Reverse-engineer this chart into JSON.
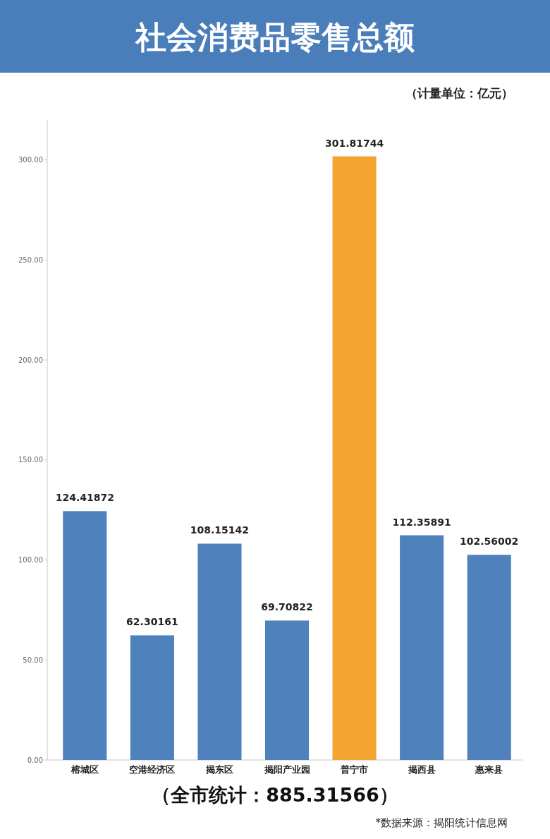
{
  "chart_data": {
    "type": "bar",
    "title": "社会消费品零售总额",
    "subtitle": "（计量单位：亿元）",
    "categories": [
      "榕城区",
      "空港经济区",
      "揭东区",
      "揭阳产业园",
      "普宁市",
      "揭西县",
      "惠来县"
    ],
    "values": [
      124.41872,
      62.30161,
      108.15142,
      69.70822,
      301.81744,
      112.35891,
      102.56002
    ],
    "colors": [
      "#4f81bd",
      "#4f81bd",
      "#4f81bd",
      "#4f81bd",
      "#f4a431",
      "#4f81bd",
      "#4f81bd"
    ],
    "data_labels": true,
    "ylim": [
      0,
      320
    ],
    "yticks": [
      {
        "value": 0,
        "label": "0.00"
      },
      {
        "value": 50,
        "label": "50.00"
      },
      {
        "value": 100,
        "label": "100.00"
      },
      {
        "value": 150,
        "label": "150.00"
      },
      {
        "value": 200,
        "label": "200.00"
      },
      {
        "value": 250,
        "label": "250.00"
      },
      {
        "value": 300,
        "label": "300.00"
      }
    ],
    "grid": false,
    "annotations": [
      "（全市统计：885.31566）",
      "*数据来源：揭阳统计信息网"
    ]
  }
}
